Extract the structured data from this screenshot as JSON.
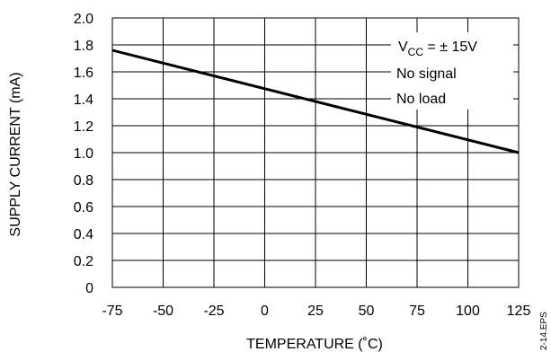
{
  "chart_data": {
    "type": "line",
    "xlabel": "TEMPERATURE (˚C)",
    "ylabel": "SUPPLY CURRENT (mA)",
    "xlim": [
      -75,
      125
    ],
    "ylim": [
      0,
      2.0
    ],
    "x_ticks": [
      "-75",
      "-50",
      "-25",
      "0",
      "25",
      "50",
      "75",
      "100",
      "125"
    ],
    "y_ticks": [
      "0",
      "0.2",
      "0.4",
      "0.6",
      "0.8",
      "1.0",
      "1.2",
      "1.4",
      "1.6",
      "1.8",
      "2.0"
    ],
    "grid": true,
    "series": [
      {
        "x": [
          -75,
          125
        ],
        "y": [
          1.76,
          1.0
        ]
      }
    ],
    "annotations": {
      "vcc_main": "V",
      "vcc_sub": "CC",
      "vcc_value": " = ± 15V",
      "line2": "No signal",
      "line3": "No load"
    },
    "figure_id": "2-14.EPS"
  }
}
